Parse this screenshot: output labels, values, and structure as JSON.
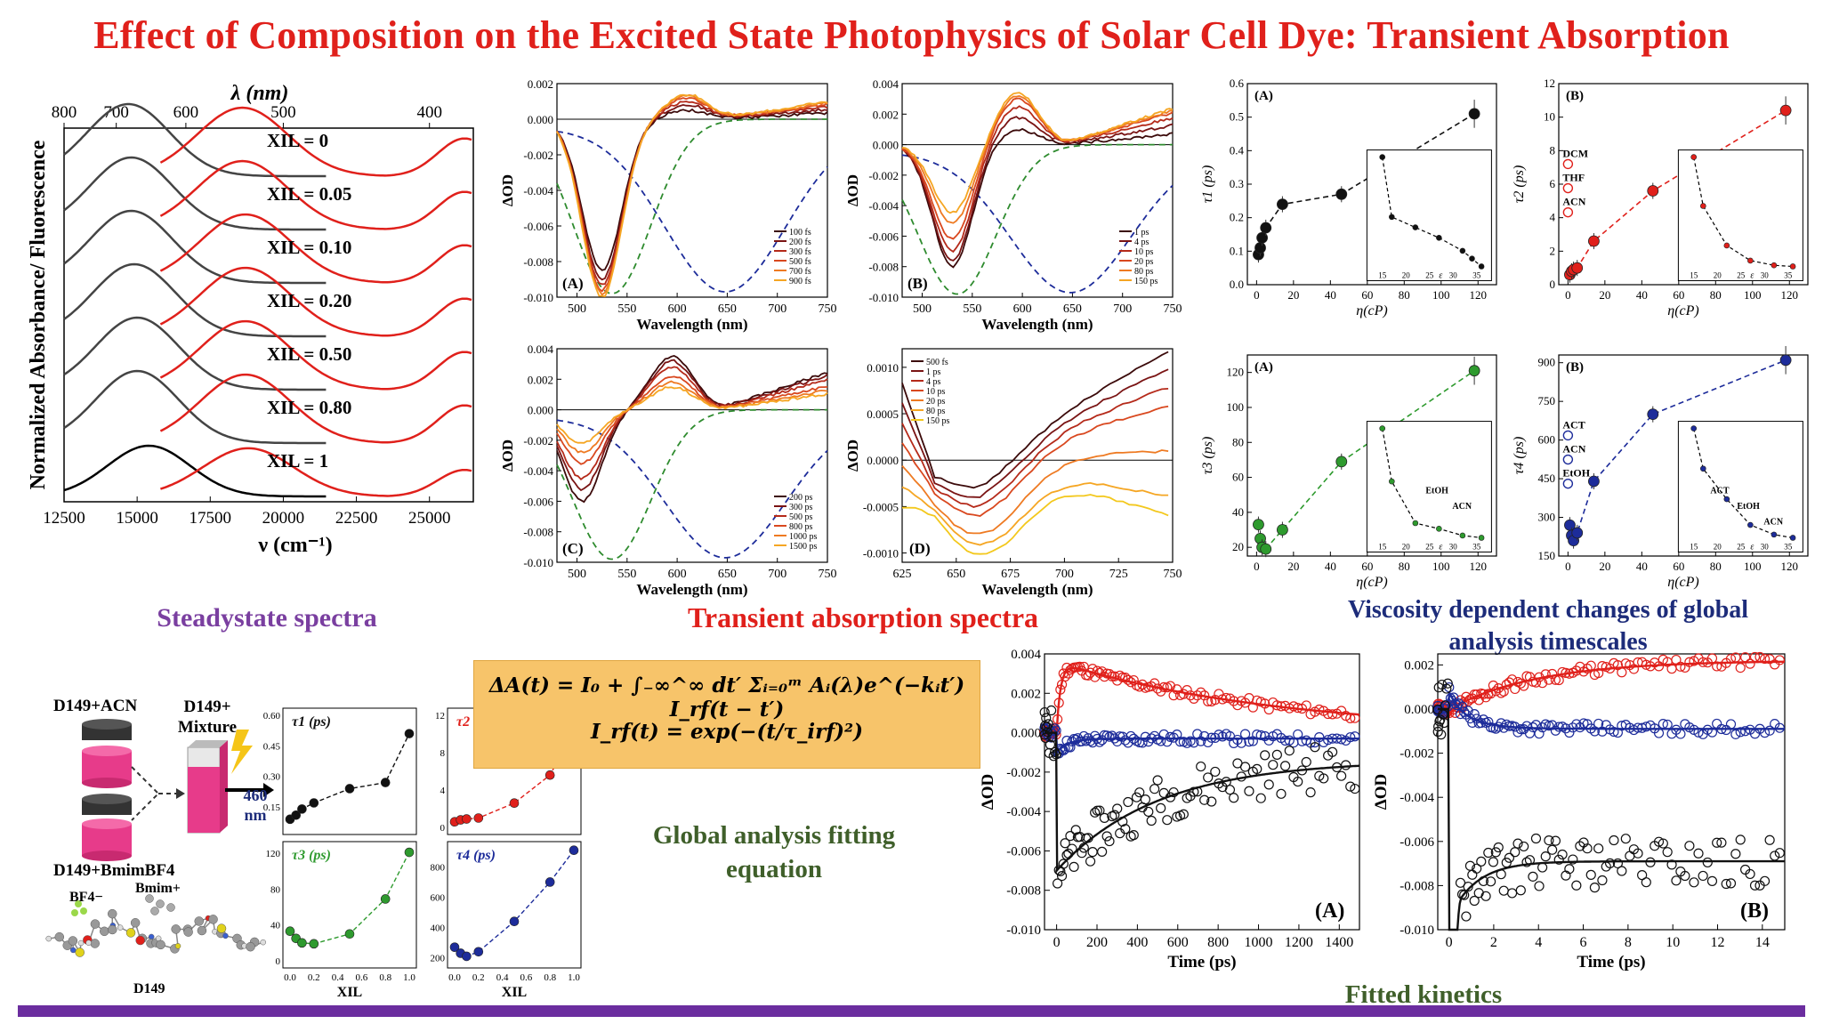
{
  "title": "Effect of Composition on the Excited State Photophysics of Solar Cell Dye: Transient Absorption",
  "captions": {
    "steady": "Steadystate spectra",
    "transient": "Transient absorption spectra",
    "viscosity_line1": "Viscosity dependent changes of global",
    "viscosity_line2": "analysis timescales",
    "global_line1": "Global analysis fitting",
    "global_line2": "equation",
    "kinetics": "Fitted kinetics"
  },
  "equation": {
    "line1": "ΔA(t) = I₀ + ∫₋∞^∞ dt′ Σᵢ₌₀ᵐ Aᵢ(λ)e^(−kᵢt′) I_rf(t − t′)",
    "line2": "I_rf(t) = exp(−(t/τ_irf)²)"
  },
  "scheme": {
    "label_acn": "D149+ACN",
    "label_mixture": "D149+ Mixture",
    "label_bmim": "D149+BmimBF4",
    "excitation": "460 nm",
    "bf4": "BF4−",
    "bmim": "Bmim+",
    "dye": "D149"
  },
  "colors": {
    "title": "#e0201b",
    "purple": "#7a3fa0",
    "red": "#e0201b",
    "navy": "#1d2c7a",
    "green": "#3f5f2a",
    "bar": "#6b2d9f"
  },
  "chart_data": [
    {
      "id": "steady-state",
      "type": "line",
      "ylabel": "Normalized Absorbance/ Fluorescence",
      "xlabel": "ν (cm⁻¹)",
      "top_axis_label": "λ (nm)",
      "x_ticks": [
        12500,
        15000,
        17500,
        20000,
        22500,
        25000
      ],
      "top_ticks": [
        800,
        700,
        600,
        500,
        400
      ],
      "xlim": [
        12500,
        26500
      ],
      "series": [
        {
          "name": "XIL = 0",
          "abs_peak": 14700,
          "fl_peak": 18600
        },
        {
          "name": "XIL = 0.05",
          "abs_peak": 14800,
          "fl_peak": 18600
        },
        {
          "name": "XIL = 0.10",
          "abs_peak": 14800,
          "fl_peak": 18700
        },
        {
          "name": "XIL = 0.20",
          "abs_peak": 14900,
          "fl_peak": 18700
        },
        {
          "name": "XIL = 0.50",
          "abs_peak": 15000,
          "fl_peak": 18700
        },
        {
          "name": "XIL = 0.80",
          "abs_peak": 15000,
          "fl_peak": 18700
        },
        {
          "name": "XIL = 1",
          "abs_peak": 15400,
          "fl_peak": 18800
        }
      ]
    },
    {
      "id": "ta-A",
      "type": "line",
      "panel": "(A)",
      "xlabel": "Wavelength (nm)",
      "ylabel": "ΔOD",
      "xlim": [
        480,
        750
      ],
      "ylim": [
        -0.01,
        0.002
      ],
      "x_ticks": [
        500,
        550,
        600,
        650,
        700,
        750
      ],
      "y_ticks": [
        "0.002",
        "0.000",
        "-0.002",
        "-0.004",
        "-0.006",
        "-0.008",
        "-0.010"
      ],
      "legend": [
        "100 fs",
        "200 fs",
        "300 fs",
        "500 fs",
        "700 fs",
        "900 fs"
      ],
      "min_x": 525,
      "min_values": [
        -0.0085,
        -0.009,
        -0.0093,
        -0.0096,
        -0.0098,
        -0.01
      ],
      "peak_x": 610,
      "peak_values": [
        0.0005,
        0.0008,
        0.001,
        0.0012,
        0.0013,
        0.0014
      ]
    },
    {
      "id": "ta-B",
      "type": "line",
      "panel": "(B)",
      "xlabel": "Wavelength (nm)",
      "ylabel": "ΔOD",
      "xlim": [
        480,
        750
      ],
      "ylim": [
        -0.01,
        0.004
      ],
      "x_ticks": [
        500,
        550,
        600,
        650,
        700,
        750
      ],
      "y_ticks": [
        "0.004",
        "0.002",
        "0.000",
        "-0.002",
        "-0.004",
        "-0.006",
        "-0.008",
        "-0.010"
      ],
      "legend": [
        "1 ps",
        "4 ps",
        "10 ps",
        "20 ps",
        "80 ps",
        "150 ps"
      ],
      "min_x": 530,
      "min_values": [
        -0.008,
        -0.0076,
        -0.007,
        -0.0062,
        -0.0052,
        -0.0045
      ],
      "peak_x": 595,
      "peak_values": [
        0.001,
        0.0018,
        0.0025,
        0.003,
        0.0032,
        0.0034
      ]
    },
    {
      "id": "ta-C",
      "type": "line",
      "panel": "(C)",
      "xlabel": "Wavelength (nm)",
      "ylabel": "ΔOD",
      "xlim": [
        480,
        750
      ],
      "ylim": [
        -0.01,
        0.004
      ],
      "x_ticks": [
        500,
        550,
        600,
        650,
        700,
        750
      ],
      "y_ticks": [
        "0.004",
        "0.002",
        "0.000",
        "-0.002",
        "-0.004",
        "-0.006",
        "-0.008",
        "-0.010"
      ],
      "legend": [
        "200 ps",
        "300 ps",
        "500 ps",
        "800 ps",
        "1000 ps",
        "1500 ps"
      ],
      "min_x": 505,
      "min_values": [
        -0.006,
        -0.0052,
        -0.0045,
        -0.0035,
        -0.0028,
        -0.0022
      ],
      "peak_x": 595,
      "peak_values": [
        0.0035,
        0.0032,
        0.0028,
        0.0022,
        0.0018,
        0.0015
      ]
    },
    {
      "id": "ta-D",
      "type": "line",
      "panel": "(D)",
      "xlabel": "Wavelength (nm)",
      "ylabel": "ΔOD",
      "xlim": [
        625,
        750
      ],
      "ylim": [
        -0.0011,
        0.0012
      ],
      "x_ticks": [
        625,
        650,
        675,
        700,
        725,
        750
      ],
      "y_ticks": [
        "0.0010",
        "0.0005",
        "0.0000",
        "-0.0005",
        "-0.0010"
      ],
      "legend": [
        "500 fs",
        "1 ps",
        "4 ps",
        "10 ps",
        "20 ps",
        "80 ps",
        "150 ps"
      ],
      "min_x": 660,
      "min_values": [
        -0.0003,
        -0.0004,
        -0.0005,
        -0.0006,
        -0.0008,
        -0.0009,
        -0.001
      ],
      "end_values": [
        0.0012,
        0.001,
        0.0008,
        0.0006,
        0.0001,
        -0.0004,
        -0.0006
      ]
    },
    {
      "id": "tau1",
      "type": "scatter",
      "panel": "(A)",
      "ylabel": "τ1 (ps)",
      "xlabel": "η(cP)",
      "xlim": [
        -5,
        130
      ],
      "ylim": [
        0,
        0.6
      ],
      "x": [
        1,
        2,
        3,
        5,
        14,
        46,
        118
      ],
      "y": [
        0.09,
        0.11,
        0.14,
        0.17,
        0.24,
        0.27,
        0.51
      ],
      "inset": {
        "x": [
          15,
          17,
          22,
          27,
          32,
          34,
          36
        ],
        "y": [
          0.52,
          0.29,
          0.25,
          0.21,
          0.16,
          0.13,
          0.1
        ],
        "label": "ε"
      }
    },
    {
      "id": "tau2",
      "type": "scatter",
      "panel": "(B)",
      "ylabel": "τ2 (ps)",
      "xlabel": "η(cP)",
      "xlim": [
        -5,
        130
      ],
      "ylim": [
        0,
        12
      ],
      "x": [
        1,
        2,
        3,
        5,
        14,
        46,
        118
      ],
      "y": [
        0.6,
        0.8,
        0.9,
        1.0,
        2.6,
        5.6,
        10.4
      ],
      "open_labels": [
        "DCM",
        "THF",
        "ACN"
      ],
      "inset": {
        "x": [
          15,
          17,
          22,
          27,
          32,
          36
        ],
        "y": [
          10.2,
          6.0,
          2.6,
          1.3,
          0.9,
          0.8
        ],
        "label": "ε"
      }
    },
    {
      "id": "tau3",
      "type": "scatter",
      "panel": "(A)",
      "ylabel": "τ3 (ps)",
      "xlabel": "η(cP)",
      "xlim": [
        -5,
        130
      ],
      "ylim": [
        15,
        130
      ],
      "x": [
        1,
        2,
        3,
        5,
        14,
        46,
        118
      ],
      "y": [
        33,
        25,
        20,
        19,
        30,
        69,
        121
      ],
      "inset": {
        "x": [
          15,
          17,
          22,
          27,
          32,
          36
        ],
        "y": [
          117,
          70,
          33,
          28,
          22,
          20
        ],
        "labels": [
          "EtOH",
          "ACN"
        ],
        "label": "ε"
      }
    },
    {
      "id": "tau4",
      "type": "scatter",
      "panel": "(B)",
      "ylabel": "τ4 (ps)",
      "xlabel": "η(cP)",
      "xlim": [
        -5,
        130
      ],
      "ylim": [
        150,
        930
      ],
      "x": [
        1,
        2,
        3,
        5,
        14,
        46,
        118
      ],
      "y": [
        270,
        230,
        210,
        240,
        440,
        700,
        910
      ],
      "open_labels": [
        "ACT",
        "ACN",
        "EtOH"
      ],
      "inset": {
        "x": [
          15,
          17,
          22,
          27,
          32,
          36
        ],
        "y": [
          900,
          650,
          460,
          300,
          240,
          220
        ],
        "labels": [
          "ACT",
          "EtOH",
          "ACN"
        ],
        "label": "ε"
      }
    },
    {
      "id": "small-tau1",
      "type": "scatter",
      "ylabel": "τ1 (ps)",
      "xlabel": "XIL",
      "x": [
        0,
        0.05,
        0.1,
        0.2,
        0.5,
        0.8,
        1.0
      ],
      "y": [
        0.09,
        0.11,
        0.14,
        0.17,
        0.24,
        0.27,
        0.51
      ],
      "ylim": [
        0.05,
        0.6
      ],
      "y_ticks": [
        "0.15",
        "0.30",
        "0.45",
        "0.60"
      ]
    },
    {
      "id": "small-tau2",
      "type": "scatter",
      "ylabel": "τ2 (ps)",
      "xlabel": "XIL",
      "x": [
        0,
        0.05,
        0.1,
        0.2,
        0.5,
        0.8,
        1.0
      ],
      "y": [
        0.6,
        0.8,
        0.9,
        1.0,
        2.6,
        5.6,
        10.4
      ],
      "ylim": [
        0,
        12
      ],
      "y_ticks": [
        "0",
        "4",
        "8",
        "12"
      ]
    },
    {
      "id": "small-tau3",
      "type": "scatter",
      "ylabel": "τ3 (ps)",
      "xlabel": "XIL",
      "x": [
        0,
        0.05,
        0.1,
        0.2,
        0.5,
        0.8,
        1.0
      ],
      "y": [
        33,
        25,
        20,
        19,
        30,
        69,
        121
      ],
      "ylim": [
        0,
        125
      ],
      "y_ticks": [
        "0",
        "40",
        "80",
        "120"
      ]
    },
    {
      "id": "small-tau4",
      "type": "scatter",
      "ylabel": "τ4 (ps)",
      "xlabel": "XIL",
      "x": [
        0,
        0.05,
        0.1,
        0.2,
        0.5,
        0.8,
        1.0
      ],
      "y": [
        270,
        230,
        210,
        240,
        440,
        700,
        910
      ],
      "ylim": [
        180,
        920
      ],
      "y_ticks": [
        "200",
        "400",
        "600",
        "800"
      ],
      "x_ticks": [
        "0.0",
        "0.2",
        "0.4",
        "0.6",
        "0.8",
        "1.0"
      ]
    },
    {
      "id": "kin-A",
      "type": "scatter",
      "panel": "(A)",
      "xlabel": "Time (ps)",
      "ylabel": "ΔOD",
      "xlim": [
        -60,
        1500
      ],
      "ylim": [
        -0.01,
        0.004
      ],
      "x_ticks": [
        0,
        200,
        400,
        600,
        800,
        1000,
        1200,
        1400
      ],
      "y_ticks": [
        "0.004",
        "0.002",
        "0.000",
        "-0.002",
        "-0.004",
        "-0.006",
        "-0.008",
        "-0.010"
      ],
      "series": [
        {
          "name": "red",
          "rise_peak": 0.0036,
          "end": 0.001
        },
        {
          "name": "blue",
          "start": -0.001,
          "end": -0.0003
        },
        {
          "name": "black",
          "start": -0.007,
          "end": -0.0014
        }
      ]
    },
    {
      "id": "kin-B",
      "type": "scatter",
      "panel": "(B)",
      "xlabel": "Time (ps)",
      "ylabel": "ΔOD",
      "xlim": [
        -0.5,
        15
      ],
      "ylim": [
        -0.01,
        0.0025
      ],
      "x_ticks": [
        0,
        2,
        4,
        6,
        8,
        10,
        12,
        14
      ],
      "y_ticks": [
        "0.002",
        "0.000",
        "-0.002",
        "-0.004",
        "-0.006",
        "-0.008",
        "-0.010"
      ],
      "series": [
        {
          "name": "red",
          "start": -0.0002,
          "end": 0.0022
        },
        {
          "name": "blue",
          "start": 0.0008,
          "end": -0.0009
        },
        {
          "name": "black",
          "start": -0.0095,
          "end": -0.0069
        }
      ]
    }
  ]
}
